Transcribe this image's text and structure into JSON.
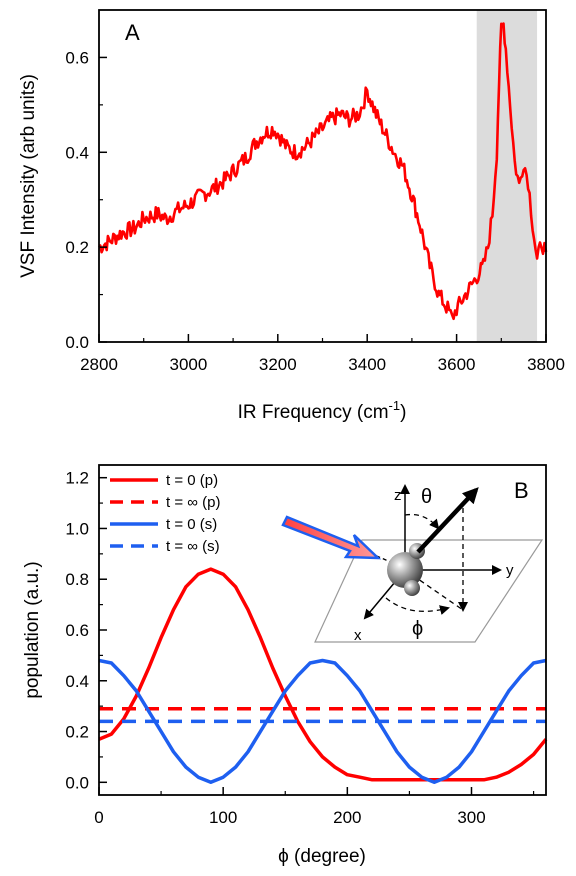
{
  "chart_data": [
    {
      "type": "line",
      "panel_label": "A",
      "xlabel_main": "IR Frequency (cm",
      "xlabel_sup": "-1",
      "xlabel_end": ")",
      "ylabel": "VSF Intensity (arb units)",
      "xlim": [
        2800,
        3800
      ],
      "ylim": [
        0.0,
        0.7
      ],
      "xticks": [
        "2800",
        "3000",
        "3200",
        "3400",
        "3600",
        "3800"
      ],
      "yticks": [
        "0.0",
        "0.2",
        "0.4",
        "0.6"
      ],
      "shaded_region": {
        "x": [
          3645,
          3780
        ],
        "color": "#dcdcdc"
      },
      "series": [
        {
          "color": "#ff0000",
          "x": [
            2800,
            2820,
            2850,
            2880,
            2900,
            2930,
            2950,
            2980,
            3000,
            3030,
            3050,
            3080,
            3100,
            3130,
            3150,
            3170,
            3190,
            3200,
            3220,
            3240,
            3260,
            3280,
            3300,
            3320,
            3340,
            3360,
            3380,
            3390,
            3400,
            3420,
            3440,
            3460,
            3480,
            3500,
            3520,
            3540,
            3560,
            3580,
            3590,
            3600,
            3620,
            3640,
            3660,
            3670,
            3680,
            3690,
            3695,
            3700,
            3705,
            3710,
            3720,
            3730,
            3740,
            3750,
            3760,
            3770,
            3780,
            3790,
            3800
          ],
          "y": [
            0.2,
            0.21,
            0.23,
            0.24,
            0.26,
            0.27,
            0.26,
            0.28,
            0.29,
            0.31,
            0.32,
            0.34,
            0.36,
            0.39,
            0.42,
            0.44,
            0.45,
            0.44,
            0.41,
            0.4,
            0.41,
            0.43,
            0.45,
            0.47,
            0.48,
            0.47,
            0.48,
            0.5,
            0.53,
            0.48,
            0.44,
            0.4,
            0.37,
            0.31,
            0.24,
            0.16,
            0.1,
            0.07,
            0.05,
            0.07,
            0.1,
            0.13,
            0.16,
            0.2,
            0.27,
            0.4,
            0.55,
            0.66,
            0.67,
            0.62,
            0.5,
            0.38,
            0.33,
            0.38,
            0.34,
            0.25,
            0.17,
            0.21,
            0.19
          ]
        }
      ]
    },
    {
      "type": "line",
      "panel_label": "B",
      "xlabel": "ϕ (degree)",
      "ylabel": "population (a.u.)",
      "xlim": [
        0,
        360
      ],
      "ylim": [
        -0.05,
        1.25
      ],
      "xticks": [
        "0",
        "100",
        "200",
        "300"
      ],
      "yticks": [
        "0.0",
        "0.2",
        "0.4",
        "0.6",
        "0.8",
        "1.0",
        "1.2"
      ],
      "legend_position": "top-left",
      "series": [
        {
          "name": "t = 0  (p)",
          "color": "#ff0000",
          "style": "solid",
          "x": [
            0,
            10,
            20,
            30,
            40,
            50,
            60,
            70,
            80,
            90,
            100,
            110,
            120,
            130,
            140,
            150,
            160,
            170,
            180,
            190,
            200,
            210,
            220,
            230,
            240,
            250,
            260,
            270,
            280,
            290,
            300,
            310,
            320,
            330,
            340,
            350,
            360
          ],
          "y": [
            0.17,
            0.19,
            0.25,
            0.34,
            0.45,
            0.57,
            0.68,
            0.77,
            0.82,
            0.84,
            0.82,
            0.77,
            0.68,
            0.57,
            0.45,
            0.34,
            0.24,
            0.16,
            0.1,
            0.06,
            0.03,
            0.02,
            0.01,
            0.01,
            0.01,
            0.01,
            0.01,
            0.01,
            0.01,
            0.01,
            0.01,
            0.01,
            0.02,
            0.04,
            0.07,
            0.11,
            0.17
          ]
        },
        {
          "name": "t = ∞  (p)",
          "color": "#ff0000",
          "style": "dashed",
          "x": [
            0,
            360
          ],
          "y": [
            0.29,
            0.29
          ]
        },
        {
          "name": "t = 0  (s)",
          "color": "#1e5ff0",
          "style": "solid",
          "x": [
            0,
            10,
            20,
            30,
            40,
            50,
            60,
            70,
            80,
            90,
            100,
            110,
            120,
            130,
            140,
            150,
            160,
            170,
            180,
            190,
            200,
            210,
            220,
            230,
            240,
            250,
            260,
            270,
            280,
            290,
            300,
            310,
            320,
            330,
            340,
            350,
            360
          ],
          "y": [
            0.48,
            0.47,
            0.42,
            0.36,
            0.28,
            0.2,
            0.12,
            0.06,
            0.02,
            0.0,
            0.02,
            0.06,
            0.12,
            0.2,
            0.28,
            0.36,
            0.42,
            0.47,
            0.48,
            0.47,
            0.42,
            0.36,
            0.28,
            0.2,
            0.12,
            0.06,
            0.02,
            0.0,
            0.02,
            0.06,
            0.12,
            0.2,
            0.28,
            0.36,
            0.42,
            0.47,
            0.48
          ]
        },
        {
          "name": "t = ∞  (s)",
          "color": "#1e5ff0",
          "style": "dashed",
          "x": [
            0,
            360
          ],
          "y": [
            0.24,
            0.24
          ]
        }
      ],
      "diagram_labels": {
        "z": "z",
        "y": "y",
        "x": "x",
        "theta": "θ",
        "phi": "ϕ"
      }
    }
  ]
}
